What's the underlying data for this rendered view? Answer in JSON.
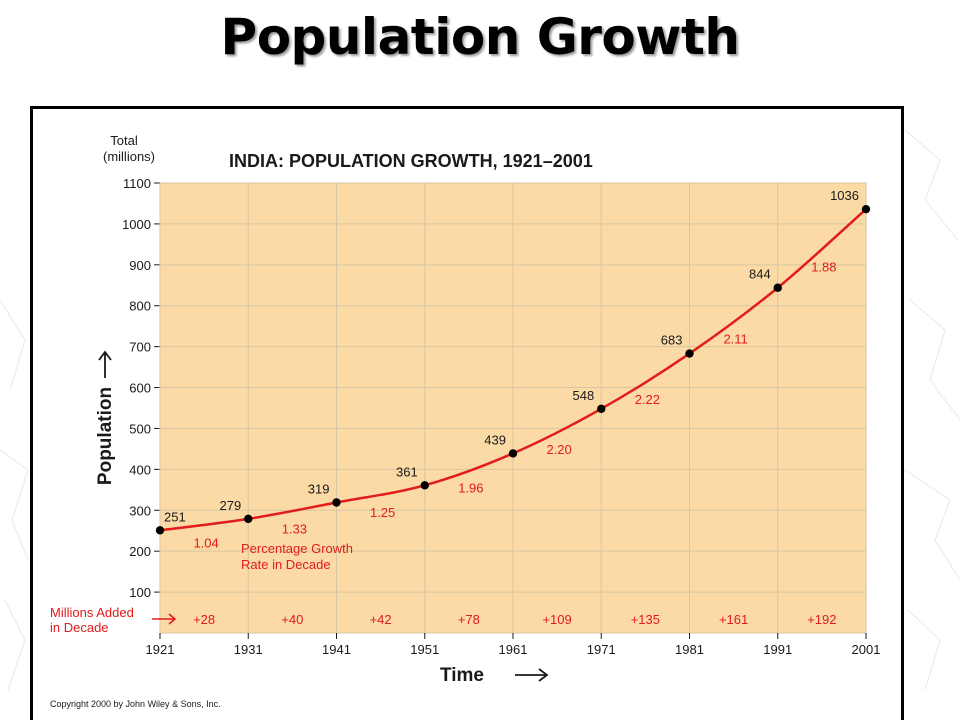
{
  "slide": {
    "title": "Population Growth"
  },
  "figure": {
    "copyright": "Copyright 2000 by John Wiley & Sons, Inc."
  },
  "chart_data": {
    "type": "line",
    "title": "INDIA: POPULATION GROWTH, 1921–2001",
    "ylabel_top": [
      "Total",
      "(millions)"
    ],
    "ylabel": "Population",
    "xlabel": "Time",
    "x": [
      1921,
      1931,
      1941,
      1951,
      1961,
      1971,
      1981,
      1991,
      2001
    ],
    "x_tick_labels": [
      "1921",
      "1931",
      "1941",
      "1951",
      "1961",
      "1971",
      "1981",
      "1991",
      "2001"
    ],
    "xlim": [
      1921,
      2001
    ],
    "ylim": [
      100,
      1100
    ],
    "y_ticks": [
      100,
      200,
      300,
      400,
      500,
      600,
      700,
      800,
      900,
      1000,
      1100
    ],
    "grid": true,
    "series": [
      {
        "values": [
          251,
          279,
          319,
          361,
          439,
          548,
          683,
          844,
          1036
        ],
        "point_labels": [
          "251",
          "279",
          "319",
          "361",
          "439",
          "548",
          "683",
          "844",
          "1036"
        ],
        "color": "#e21b1b",
        "marker_color": "#000000"
      }
    ],
    "growth_rates": {
      "label": [
        "Percentage Growth",
        "Rate in Decade"
      ],
      "values": [
        "1.04",
        "1.33",
        "1.25",
        "1.96",
        "2.20",
        "2.22",
        "2.11",
        "1.88"
      ]
    },
    "millions_added": {
      "label": [
        "Millions Added",
        "in Decade"
      ],
      "values": [
        "+28",
        "+40",
        "+42",
        "+78",
        "+109",
        "+135",
        "+161",
        "+192"
      ]
    },
    "colors": {
      "plot_background": "#fbdaa6",
      "gridline": "#d7c6a4",
      "annotation_red": "#e21b1b",
      "text": "#1a1a1a"
    }
  }
}
